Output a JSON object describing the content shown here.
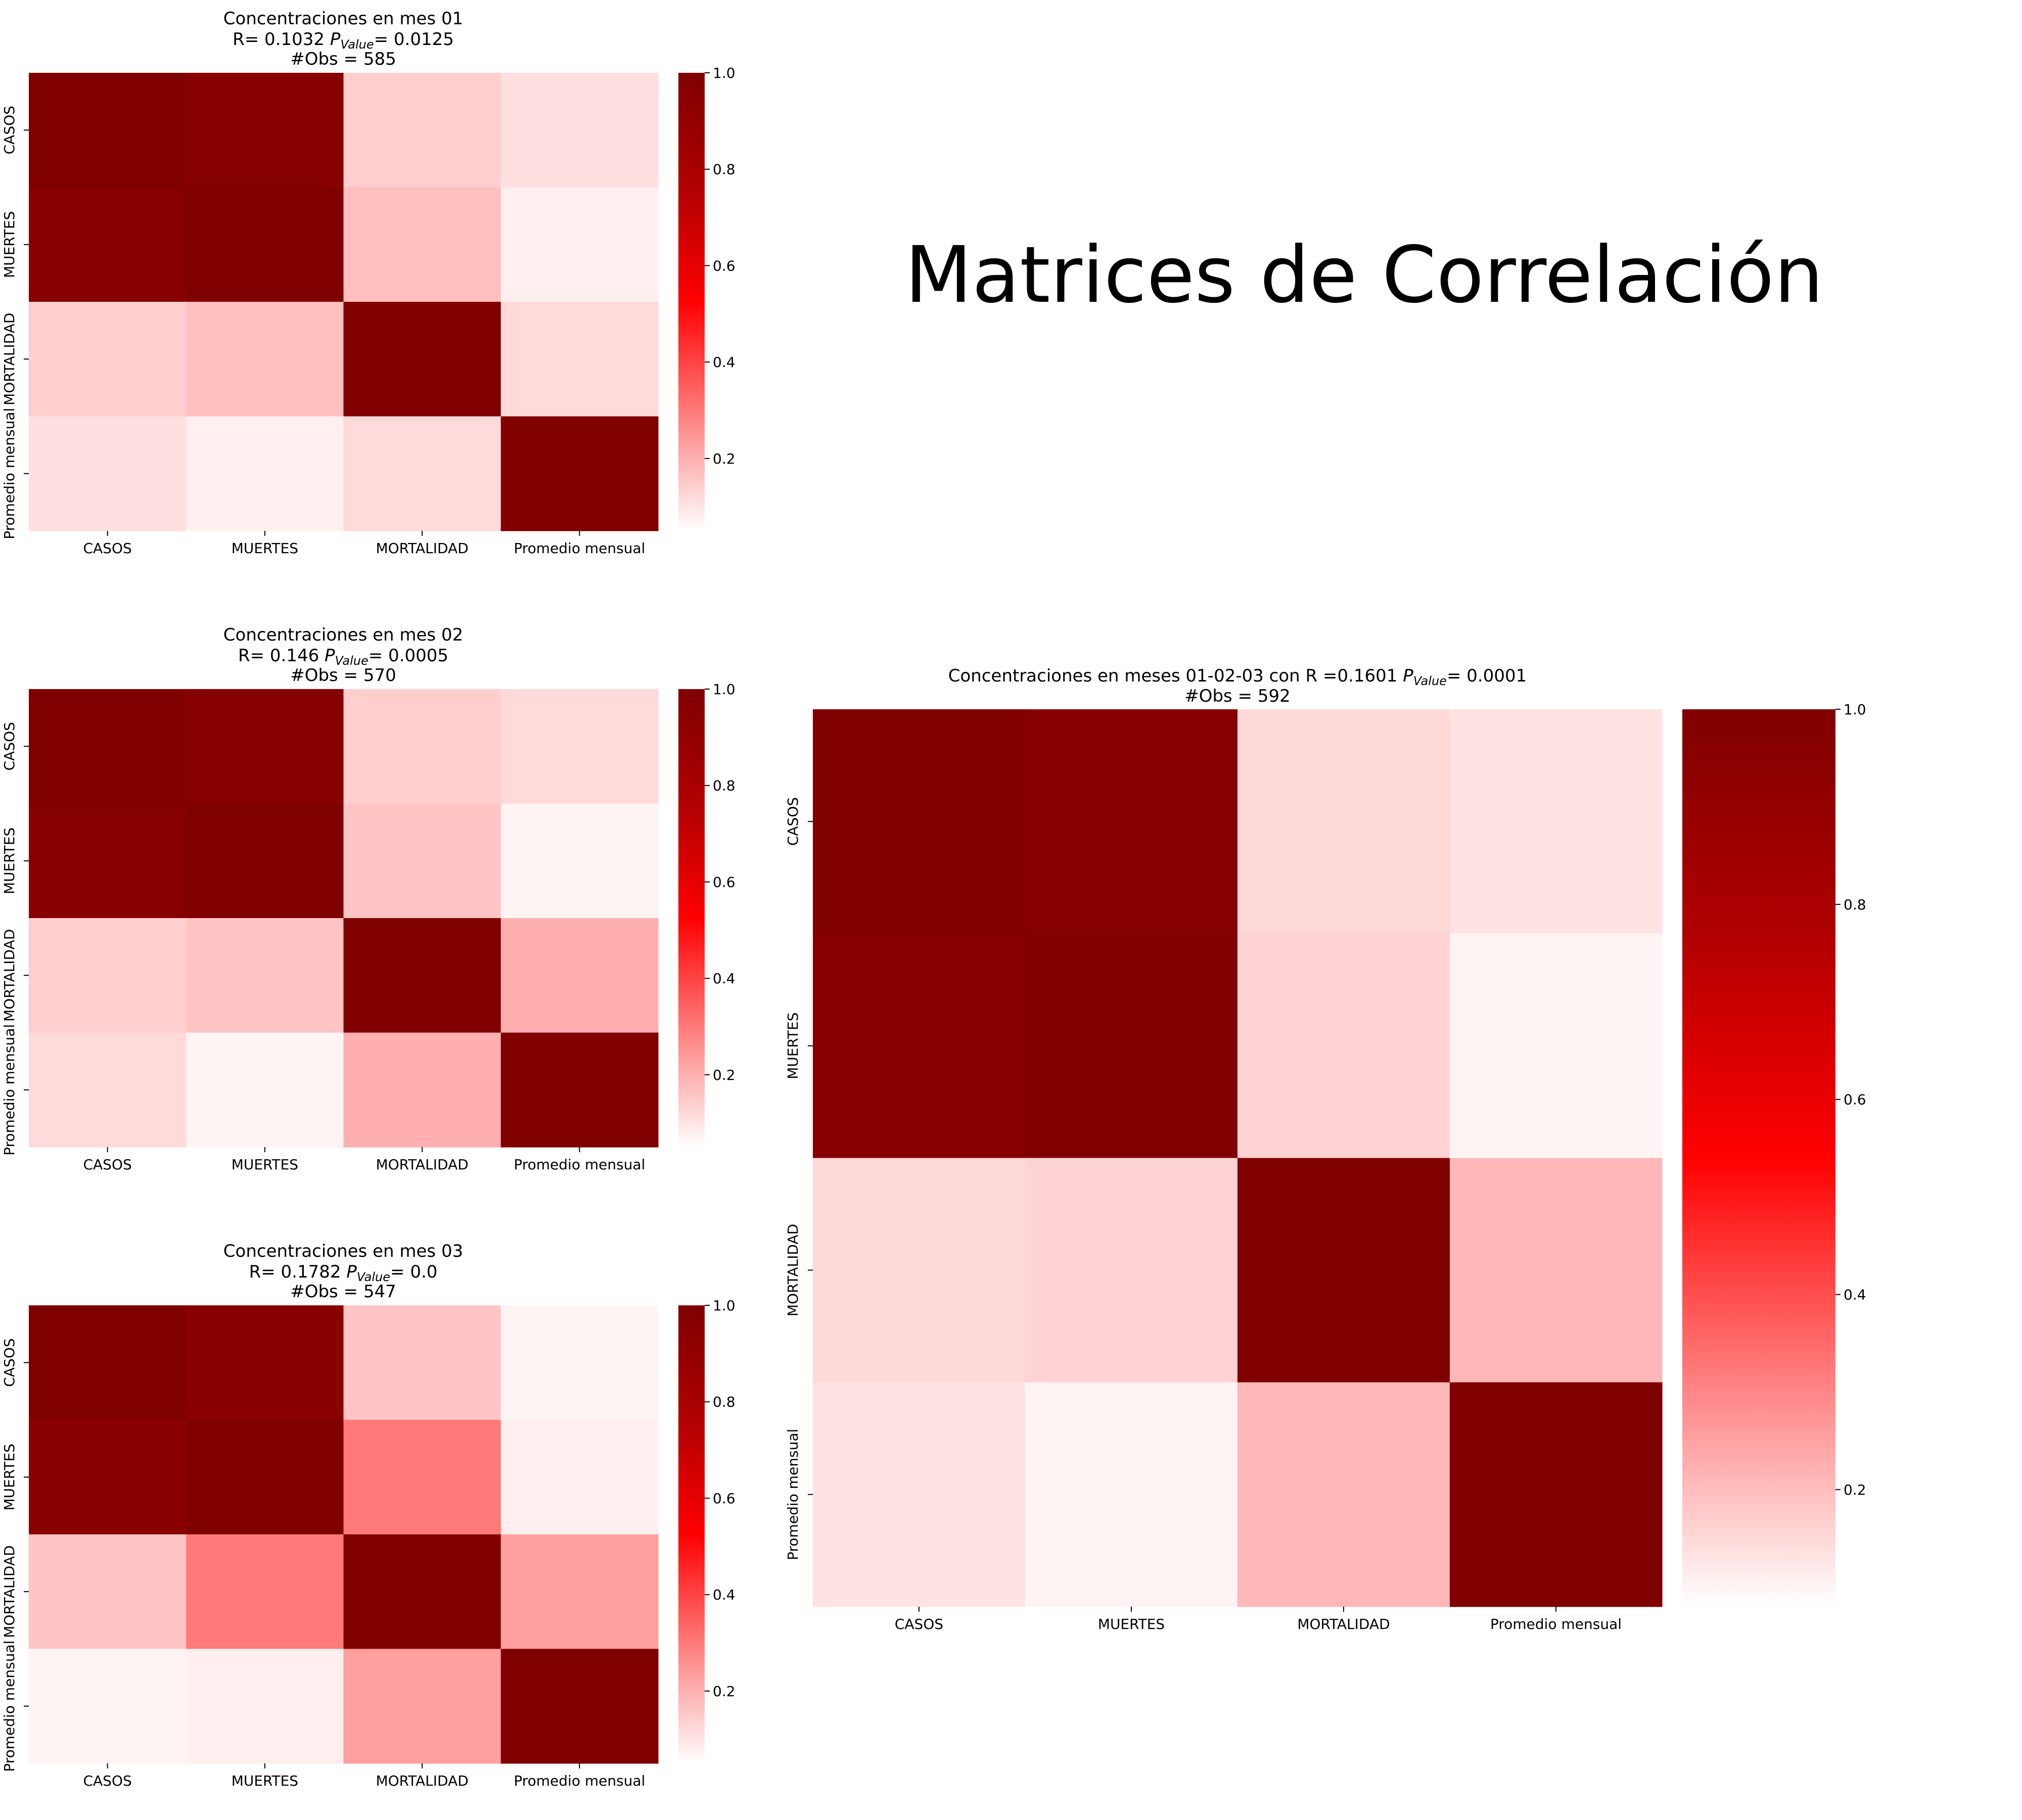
{
  "suptitle": "Matrices de Correlación",
  "colormap": {
    "name": "white-to-darkred",
    "stops": [
      "#ffffff",
      "#ff8080",
      "#ff0000",
      "#b00000",
      "#800000"
    ]
  },
  "chart_data": [
    {
      "type": "heatmap",
      "title_lines": [
        "Concentraciones en mes 01",
        "R= 0.1032 P_Value= 0.0125",
        "#Obs = 585"
      ],
      "title_parts": {
        "line1": "Concentraciones en mes 01",
        "r_prefix": "R= 0.1032 ",
        "p_symbol": "P",
        "p_sub": "Value",
        "p_value": "= 0.0125",
        "obs": "#Obs = 585"
      },
      "labels": [
        "CASOS",
        "MUERTES",
        "MORTALIDAD",
        "Promedio mensual"
      ],
      "matrix": [
        [
          1.0,
          0.97,
          0.14,
          0.11
        ],
        [
          0.97,
          1.0,
          0.17,
          0.08
        ],
        [
          0.14,
          0.17,
          1.0,
          0.12
        ],
        [
          0.11,
          0.08,
          0.12,
          1.0
        ]
      ],
      "colorbar": {
        "min": 0.05,
        "max": 1.0,
        "ticks": [
          0.2,
          0.4,
          0.6,
          0.8,
          1.0
        ],
        "tick_labels": [
          "0.2",
          "0.4",
          "0.6",
          "0.8",
          "1.0"
        ]
      }
    },
    {
      "type": "heatmap",
      "title_lines": [
        "Concentraciones en mes 02",
        "R= 0.146 P_Value= 0.0005",
        "#Obs = 570"
      ],
      "title_parts": {
        "line1": "Concentraciones en mes 02",
        "r_prefix": "R= 0.146 ",
        "p_symbol": "P",
        "p_sub": "Value",
        "p_value": "= 0.0005",
        "obs": "#Obs = 570"
      },
      "labels": [
        "CASOS",
        "MUERTES",
        "MORTALIDAD",
        "Promedio mensual"
      ],
      "matrix": [
        [
          1.0,
          0.97,
          0.14,
          0.12
        ],
        [
          0.97,
          1.0,
          0.16,
          0.07
        ],
        [
          0.14,
          0.16,
          1.0,
          0.2
        ],
        [
          0.12,
          0.07,
          0.2,
          1.0
        ]
      ],
      "colorbar": {
        "min": 0.05,
        "max": 1.0,
        "ticks": [
          0.2,
          0.4,
          0.6,
          0.8,
          1.0
        ],
        "tick_labels": [
          "0.2",
          "0.4",
          "0.6",
          "0.8",
          "1.0"
        ]
      }
    },
    {
      "type": "heatmap",
      "title_lines": [
        "Concentraciones en mes 03",
        "R= 0.1782 P_Value= 0.0",
        "#Obs = 547"
      ],
      "title_parts": {
        "line1": "Concentraciones en mes 03",
        "r_prefix": "R= 0.1782 ",
        "p_symbol": "P",
        "p_sub": "Value",
        "p_value": "= 0.0",
        "obs": "#Obs = 547"
      },
      "labels": [
        "CASOS",
        "MUERTES",
        "MORTALIDAD",
        "Promedio mensual"
      ],
      "matrix": [
        [
          1.0,
          0.96,
          0.16,
          0.07
        ],
        [
          0.96,
          1.0,
          0.3,
          0.08
        ],
        [
          0.16,
          0.3,
          1.0,
          0.23
        ],
        [
          0.07,
          0.08,
          0.23,
          1.0
        ]
      ],
      "colorbar": {
        "min": 0.05,
        "max": 1.0,
        "ticks": [
          0.2,
          0.4,
          0.6,
          0.8,
          1.0
        ],
        "tick_labels": [
          "0.2",
          "0.4",
          "0.6",
          "0.8",
          "1.0"
        ]
      }
    },
    {
      "type": "heatmap",
      "title_lines": [
        "Concentraciones en meses 01-02-03 con R =0.1601 P_Value= 0.0001",
        "#Obs = 592"
      ],
      "title_parts": {
        "line1": "",
        "r_prefix": "Concentraciones en meses 01-02-03 con R =0.1601 ",
        "p_symbol": "P",
        "p_sub": "Value",
        "p_value": "= 0.0001",
        "obs": "#Obs = 592"
      },
      "labels": [
        "CASOS",
        "MUERTES",
        "MORTALIDAD",
        "Promedio mensual"
      ],
      "matrix": [
        [
          1.0,
          0.97,
          0.15,
          0.13
        ],
        [
          0.97,
          1.0,
          0.16,
          0.1
        ],
        [
          0.15,
          0.16,
          1.0,
          0.21
        ],
        [
          0.13,
          0.1,
          0.21,
          1.0
        ]
      ],
      "colorbar": {
        "min": 0.08,
        "max": 1.0,
        "ticks": [
          0.2,
          0.4,
          0.6,
          0.8,
          1.0
        ],
        "tick_labels": [
          "0.2",
          "0.4",
          "0.6",
          "0.8",
          "1.0"
        ]
      }
    }
  ]
}
